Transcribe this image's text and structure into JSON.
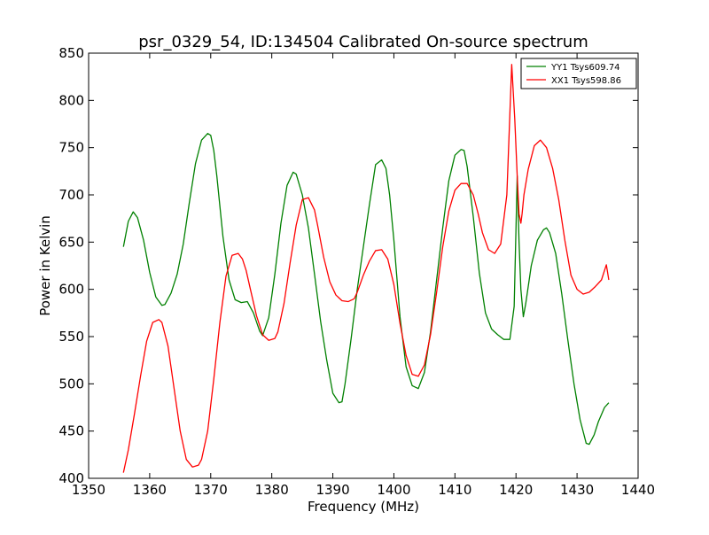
{
  "chart_data": {
    "type": "line",
    "title": "psr_0329_54, ID:134504 Calibrated On-source spectrum",
    "xlabel": "Frequency (MHz)",
    "ylabel": "Power in Kelvin",
    "xlim": [
      1350,
      1440
    ],
    "ylim": [
      400,
      850
    ],
    "xticks": [
      1350,
      1360,
      1370,
      1380,
      1390,
      1400,
      1410,
      1420,
      1430,
      1440
    ],
    "yticks": [
      400,
      450,
      500,
      550,
      600,
      650,
      700,
      750,
      800,
      850
    ],
    "grid": false,
    "legend_position": "top-right",
    "series": [
      {
        "name": "YY1 Tsys609.74",
        "color": "#008000",
        "x": [
          1355.7,
          1356.5,
          1357.3,
          1358.0,
          1359.0,
          1360.0,
          1361.0,
          1362.0,
          1362.5,
          1363.5,
          1364.5,
          1365.5,
          1366.5,
          1367.5,
          1368.5,
          1369.5,
          1370.0,
          1370.5,
          1371.0,
          1372.0,
          1373.0,
          1374.0,
          1375.0,
          1376.0,
          1377.0,
          1378.0,
          1378.5,
          1379.5,
          1380.5,
          1381.5,
          1382.5,
          1383.5,
          1384.0,
          1385.0,
          1386.0,
          1387.0,
          1388.0,
          1389.0,
          1390.0,
          1391.0,
          1391.5,
          1392.0,
          1393.0,
          1394.0,
          1395.0,
          1396.0,
          1397.0,
          1398.0,
          1398.7,
          1399.3,
          1400.0,
          1401.0,
          1402.0,
          1403.0,
          1404.0,
          1405.0,
          1406.0,
          1407.0,
          1408.0,
          1409.0,
          1410.0,
          1411.0,
          1411.5,
          1412.0,
          1413.0,
          1414.0,
          1415.0,
          1416.0,
          1417.0,
          1418.0,
          1419.0,
          1419.7,
          1420.2,
          1420.5,
          1420.8,
          1421.2,
          1421.6,
          1422.5,
          1423.5,
          1424.5,
          1425.0,
          1425.5,
          1426.5,
          1427.5,
          1428.5,
          1429.5,
          1430.5,
          1431.5,
          1432.0,
          1432.8,
          1433.5,
          1434.5,
          1435.2
        ],
        "y": [
          645,
          672,
          682,
          676,
          652,
          618,
          592,
          583,
          584,
          596,
          616,
          648,
          692,
          733,
          758,
          765,
          763,
          747,
          720,
          656,
          610,
          589,
          586,
          587,
          575,
          556,
          551,
          570,
          616,
          670,
          710,
          724,
          722,
          700,
          665,
          616,
          566,
          525,
          490,
          480,
          481,
          500,
          548,
          600,
          645,
          690,
          732,
          737,
          728,
          700,
          652,
          571,
          518,
          498,
          495,
          512,
          555,
          610,
          665,
          715,
          742,
          748,
          747,
          730,
          677,
          617,
          575,
          558,
          552,
          547,
          547,
          582,
          720,
          650,
          600,
          571,
          585,
          625,
          652,
          663,
          665,
          660,
          638,
          595,
          546,
          500,
          462,
          437,
          436,
          446,
          460,
          475,
          480
        ]
      },
      {
        "name": "XX1 Tsys598.86",
        "color": "#ff0000",
        "x": [
          1355.7,
          1356.5,
          1357.5,
          1358.5,
          1359.5,
          1360.5,
          1361.5,
          1362.0,
          1363.0,
          1364.0,
          1365.0,
          1366.0,
          1367.0,
          1368.0,
          1368.5,
          1369.5,
          1370.5,
          1371.5,
          1372.5,
          1373.5,
          1374.5,
          1375.2,
          1375.8,
          1376.5,
          1377.5,
          1378.5,
          1379.5,
          1380.5,
          1381.0,
          1382.0,
          1383.0,
          1384.0,
          1385.0,
          1386.0,
          1387.0,
          1387.5,
          1388.5,
          1389.5,
          1390.5,
          1391.5,
          1392.5,
          1393.5,
          1394.0,
          1395.0,
          1396.0,
          1397.0,
          1398.0,
          1399.0,
          1400.0,
          1401.0,
          1402.0,
          1403.0,
          1404.0,
          1405.0,
          1406.0,
          1407.0,
          1408.0,
          1409.0,
          1410.0,
          1411.0,
          1412.0,
          1413.0,
          1413.8,
          1414.5,
          1415.5,
          1416.5,
          1417.5,
          1418.5,
          1419.3,
          1419.8,
          1420.2,
          1420.5,
          1420.8,
          1421.0,
          1421.3,
          1422.0,
          1423.0,
          1424.0,
          1425.0,
          1426.0,
          1427.0,
          1428.0,
          1429.0,
          1430.0,
          1431.0,
          1432.0,
          1433.0,
          1434.0,
          1434.8,
          1435.2
        ],
        "y": [
          406,
          430,
          468,
          508,
          545,
          565,
          568,
          565,
          540,
          495,
          450,
          420,
          412,
          414,
          420,
          450,
          505,
          565,
          614,
          636,
          638,
          632,
          620,
          600,
          572,
          552,
          546,
          548,
          555,
          585,
          628,
          668,
          695,
          697,
          684,
          668,
          634,
          608,
          594,
          588,
          587,
          590,
          597,
          615,
          630,
          641,
          642,
          632,
          605,
          564,
          530,
          510,
          508,
          520,
          552,
          597,
          645,
          683,
          705,
          712,
          712,
          700,
          680,
          660,
          642,
          638,
          648,
          700,
          838,
          780,
          720,
          680,
          670,
          680,
          700,
          727,
          752,
          758,
          750,
          728,
          695,
          652,
          615,
          600,
          595,
          597,
          603,
          610,
          626,
          610
        ]
      }
    ]
  }
}
